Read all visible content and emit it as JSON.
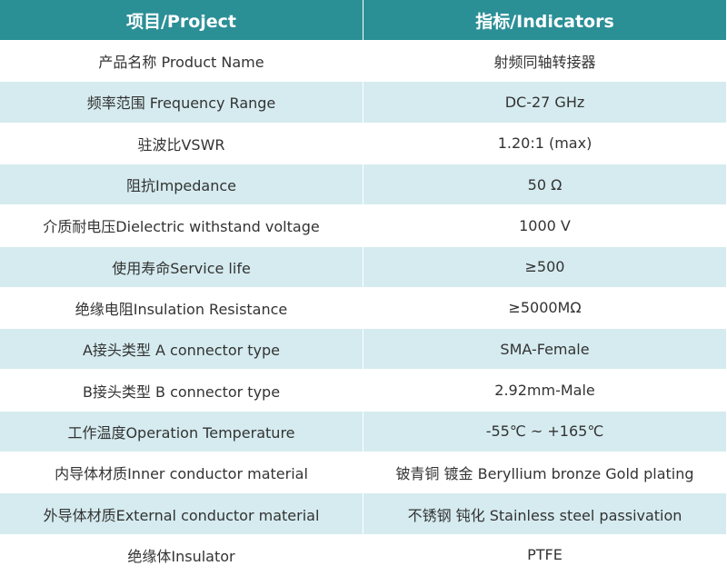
{
  "table": {
    "columns": [
      "项目/Project",
      "指标/Indicators"
    ],
    "rows": [
      [
        "产品名称 Product Name",
        "射频同轴转接器"
      ],
      [
        "频率范围 Frequency Range",
        "DC-27 GHz"
      ],
      [
        "驻波比VSWR",
        "1.20:1 (max)"
      ],
      [
        "阻抗Impedance",
        "50 Ω"
      ],
      [
        "介质耐电压Dielectric withstand voltage",
        "1000 V"
      ],
      [
        "使用寿命Service life",
        "≥500"
      ],
      [
        "绝缘电阻Insulation Resistance",
        "≥5000MΩ"
      ],
      [
        "A接头类型 A connector type",
        "SMA-Female"
      ],
      [
        "B接头类型 B connector type",
        "2.92mm-Male"
      ],
      [
        "工作温度Operation Temperature",
        "-55℃ ~ +165℃"
      ],
      [
        "内导体材质Inner conductor material",
        "铍青铜 镀金 Beryllium bronze Gold plating"
      ],
      [
        "外导体材质External conductor material",
        "不锈钢 钝化 Stainless steel passivation"
      ],
      [
        "绝缘体Insulator",
        "PTFE"
      ]
    ]
  }
}
